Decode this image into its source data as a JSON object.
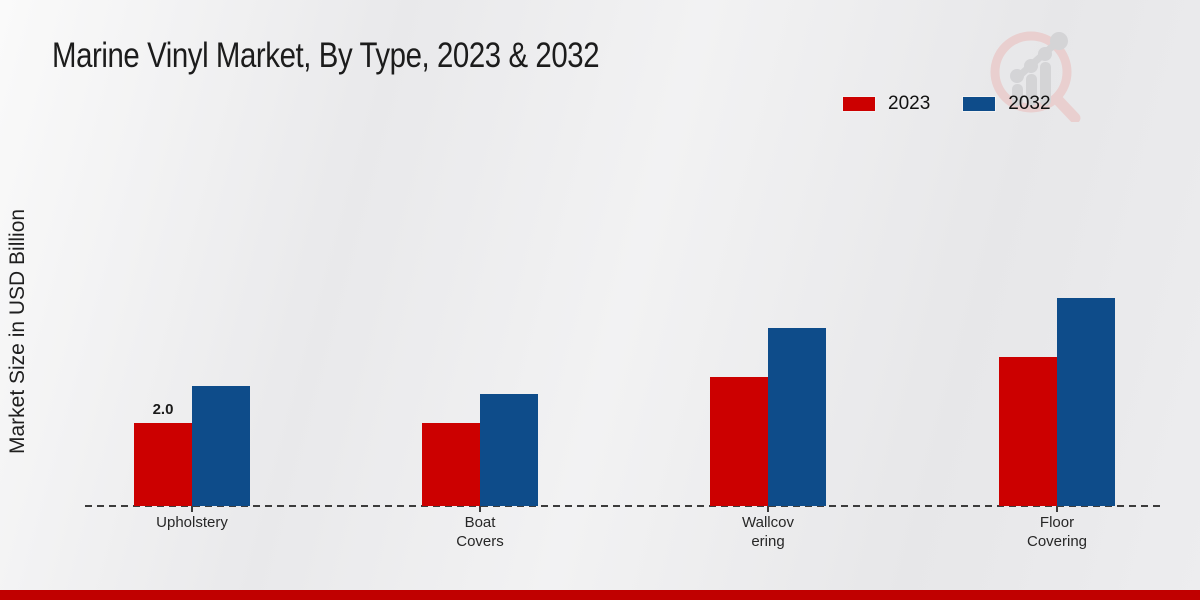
{
  "page": {
    "title": "Marine Vinyl Market, By Type, 2023 & 2032",
    "ylabel": "Market Size in USD Billion",
    "footer_color": "#c00000"
  },
  "legend": {
    "items": [
      {
        "label": "2023",
        "color": "#cc0000"
      },
      {
        "label": "2032",
        "color": "#0e4c8a"
      }
    ]
  },
  "logo": {
    "name": "magnifier-bar-chart-watermark",
    "ring_color": "#eacdcd",
    "bar_color": "#d2d2d5"
  },
  "chart_data": {
    "type": "bar",
    "title": "Marine Vinyl Market, By Type, 2023 & 2032",
    "ylabel": "Market Size in USD Billion",
    "categories": [
      "Upholstery",
      "Boat Covers",
      "Wallcovering",
      "Floor Covering"
    ],
    "category_label_lines": [
      [
        "Upholstery"
      ],
      [
        "Boat",
        "Covers"
      ],
      [
        "Wallcov",
        "ering"
      ],
      [
        "Floor",
        "Covering"
      ]
    ],
    "series": [
      {
        "name": "2023",
        "color": "#cc0000",
        "values": [
          2.0,
          2.0,
          3.1,
          3.6
        ]
      },
      {
        "name": "2032",
        "color": "#0e4c8a",
        "values": [
          2.9,
          2.7,
          4.3,
          5.0
        ]
      }
    ],
    "bar_value_labels": [
      {
        "category_index": 0,
        "series_index": 0,
        "text": "2.0"
      }
    ],
    "ylim": [
      0,
      6
    ],
    "grid": false,
    "x_axis_style": "dashed",
    "legend_position": "top-right"
  }
}
